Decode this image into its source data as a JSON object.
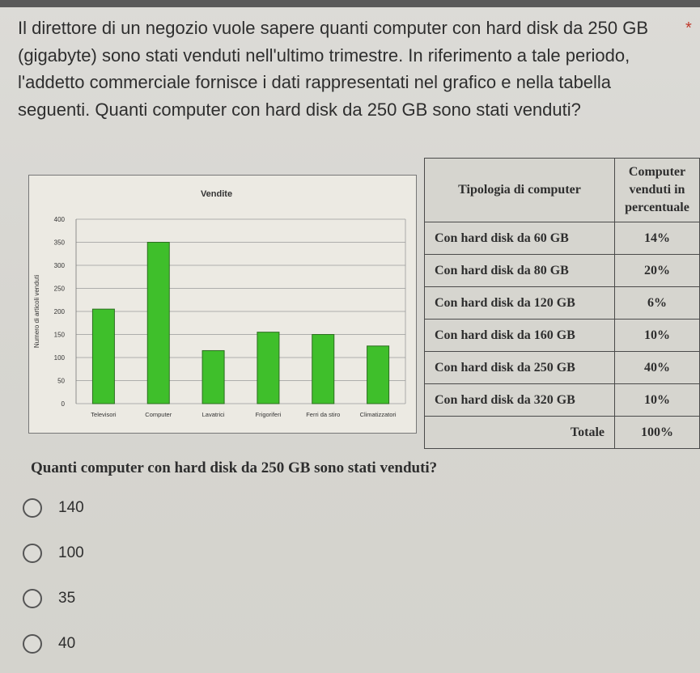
{
  "question": {
    "text": "Il direttore di un negozio vuole sapere quanti computer con hard disk da 250 GB (gigabyte) sono stati venduti nell'ultimo trimestre. In riferimento a tale periodo, l'addetto commerciale fornisce i dati rappresentati nel grafico e nella tabella seguenti. Quanti computer con hard disk da 250 GB sono stati venduti?",
    "required_marker": "*"
  },
  "chart_data": {
    "type": "bar",
    "title": "Vendite",
    "ylabel": "Numero di articoli venduti",
    "xlabel": "",
    "categories": [
      "Televisori",
      "Computer",
      "Lavatrici",
      "Frigoriferi",
      "Ferri da stiro",
      "Climatizzatori"
    ],
    "values": [
      205,
      350,
      115,
      155,
      150,
      125
    ],
    "ylim": [
      0,
      400
    ],
    "yticks": [
      0,
      50,
      100,
      150,
      200,
      250,
      300,
      350,
      400
    ],
    "grid": true,
    "bar_color": "#3fbf2b"
  },
  "table": {
    "headers": [
      "Tipologia di computer",
      "Computer venduti in percentuale"
    ],
    "rows": [
      {
        "type": "Con hard disk da 60 GB",
        "pct": "14%"
      },
      {
        "type": "Con hard disk da 80 GB",
        "pct": "20%"
      },
      {
        "type": "Con hard disk da 120 GB",
        "pct": "6%"
      },
      {
        "type": "Con hard disk da 160 GB",
        "pct": "10%"
      },
      {
        "type": "Con hard disk da 250 GB",
        "pct": "40%"
      },
      {
        "type": "Con hard disk da 320 GB",
        "pct": "10%"
      }
    ],
    "total_label": "Totale",
    "total_value": "100%"
  },
  "subquestion": "Quanti computer con hard disk da 250 GB sono stati venduti?",
  "options": [
    "140",
    "100",
    "35",
    "40"
  ]
}
